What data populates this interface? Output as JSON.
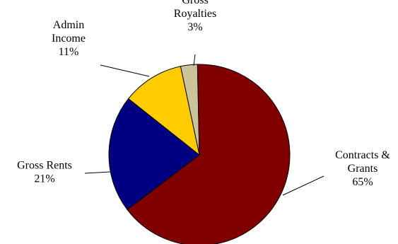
{
  "chart_data": {
    "type": "pie",
    "slices": [
      {
        "name": "Gross Royalties",
        "value": 3,
        "label_lines": [
          "Gross",
          "Royalties",
          "3%"
        ],
        "color": "#CCC39A"
      },
      {
        "name": "Contracts & Grants",
        "value": 65,
        "label_lines": [
          "Contracts &",
          "Grants",
          "65%"
        ],
        "color": "#800000"
      },
      {
        "name": "Gross Rents",
        "value": 21,
        "label_lines": [
          "Gross Rents",
          "21%"
        ],
        "color": "#000080"
      },
      {
        "name": "Admin Income",
        "value": 11,
        "label_lines": [
          "Admin",
          "Income",
          "11%"
        ],
        "color": "#FFCC00"
      }
    ],
    "start_angle_deg": -12,
    "direction": "clockwise",
    "legend": "none"
  }
}
